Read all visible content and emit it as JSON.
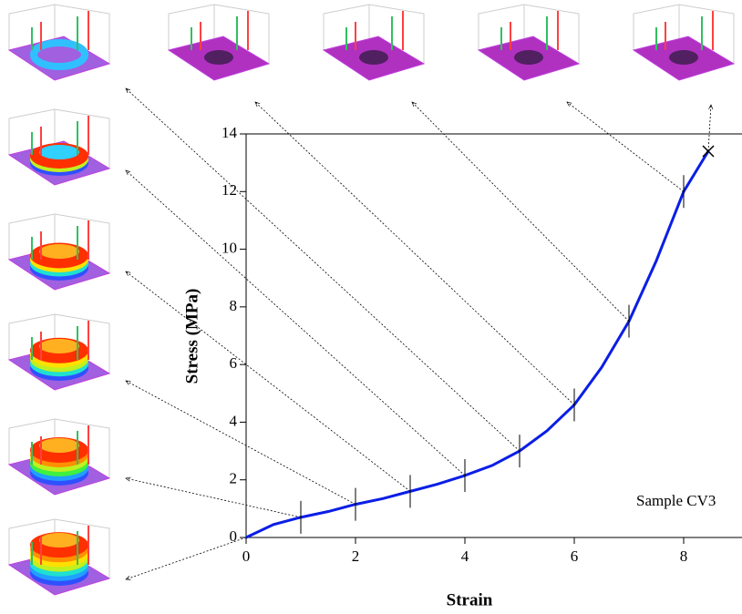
{
  "chart_data": {
    "type": "line",
    "x_label": "Strain",
    "y_label": "Stress (MPa)",
    "annotation": "Sample CV3",
    "series": [
      {
        "name": "CV3",
        "color": "#0a1ee6",
        "x": [
          0,
          0.5,
          1,
          1.5,
          2,
          2.5,
          3,
          3.5,
          4,
          4.5,
          5,
          5.5,
          6,
          6.5,
          7,
          7.5,
          8,
          8.45
        ],
        "values": [
          0,
          0.45,
          0.7,
          0.9,
          1.15,
          1.35,
          1.6,
          1.85,
          2.15,
          2.5,
          3.0,
          3.7,
          4.6,
          5.9,
          7.5,
          9.6,
          12.0,
          13.4
        ]
      }
    ],
    "xlim": [
      0,
      9
    ],
    "xticks": [
      0,
      2,
      4,
      6,
      8
    ],
    "ylim": [
      0,
      14
    ],
    "yticks": [
      0,
      2,
      4,
      6,
      8,
      10,
      12,
      14
    ]
  }
}
